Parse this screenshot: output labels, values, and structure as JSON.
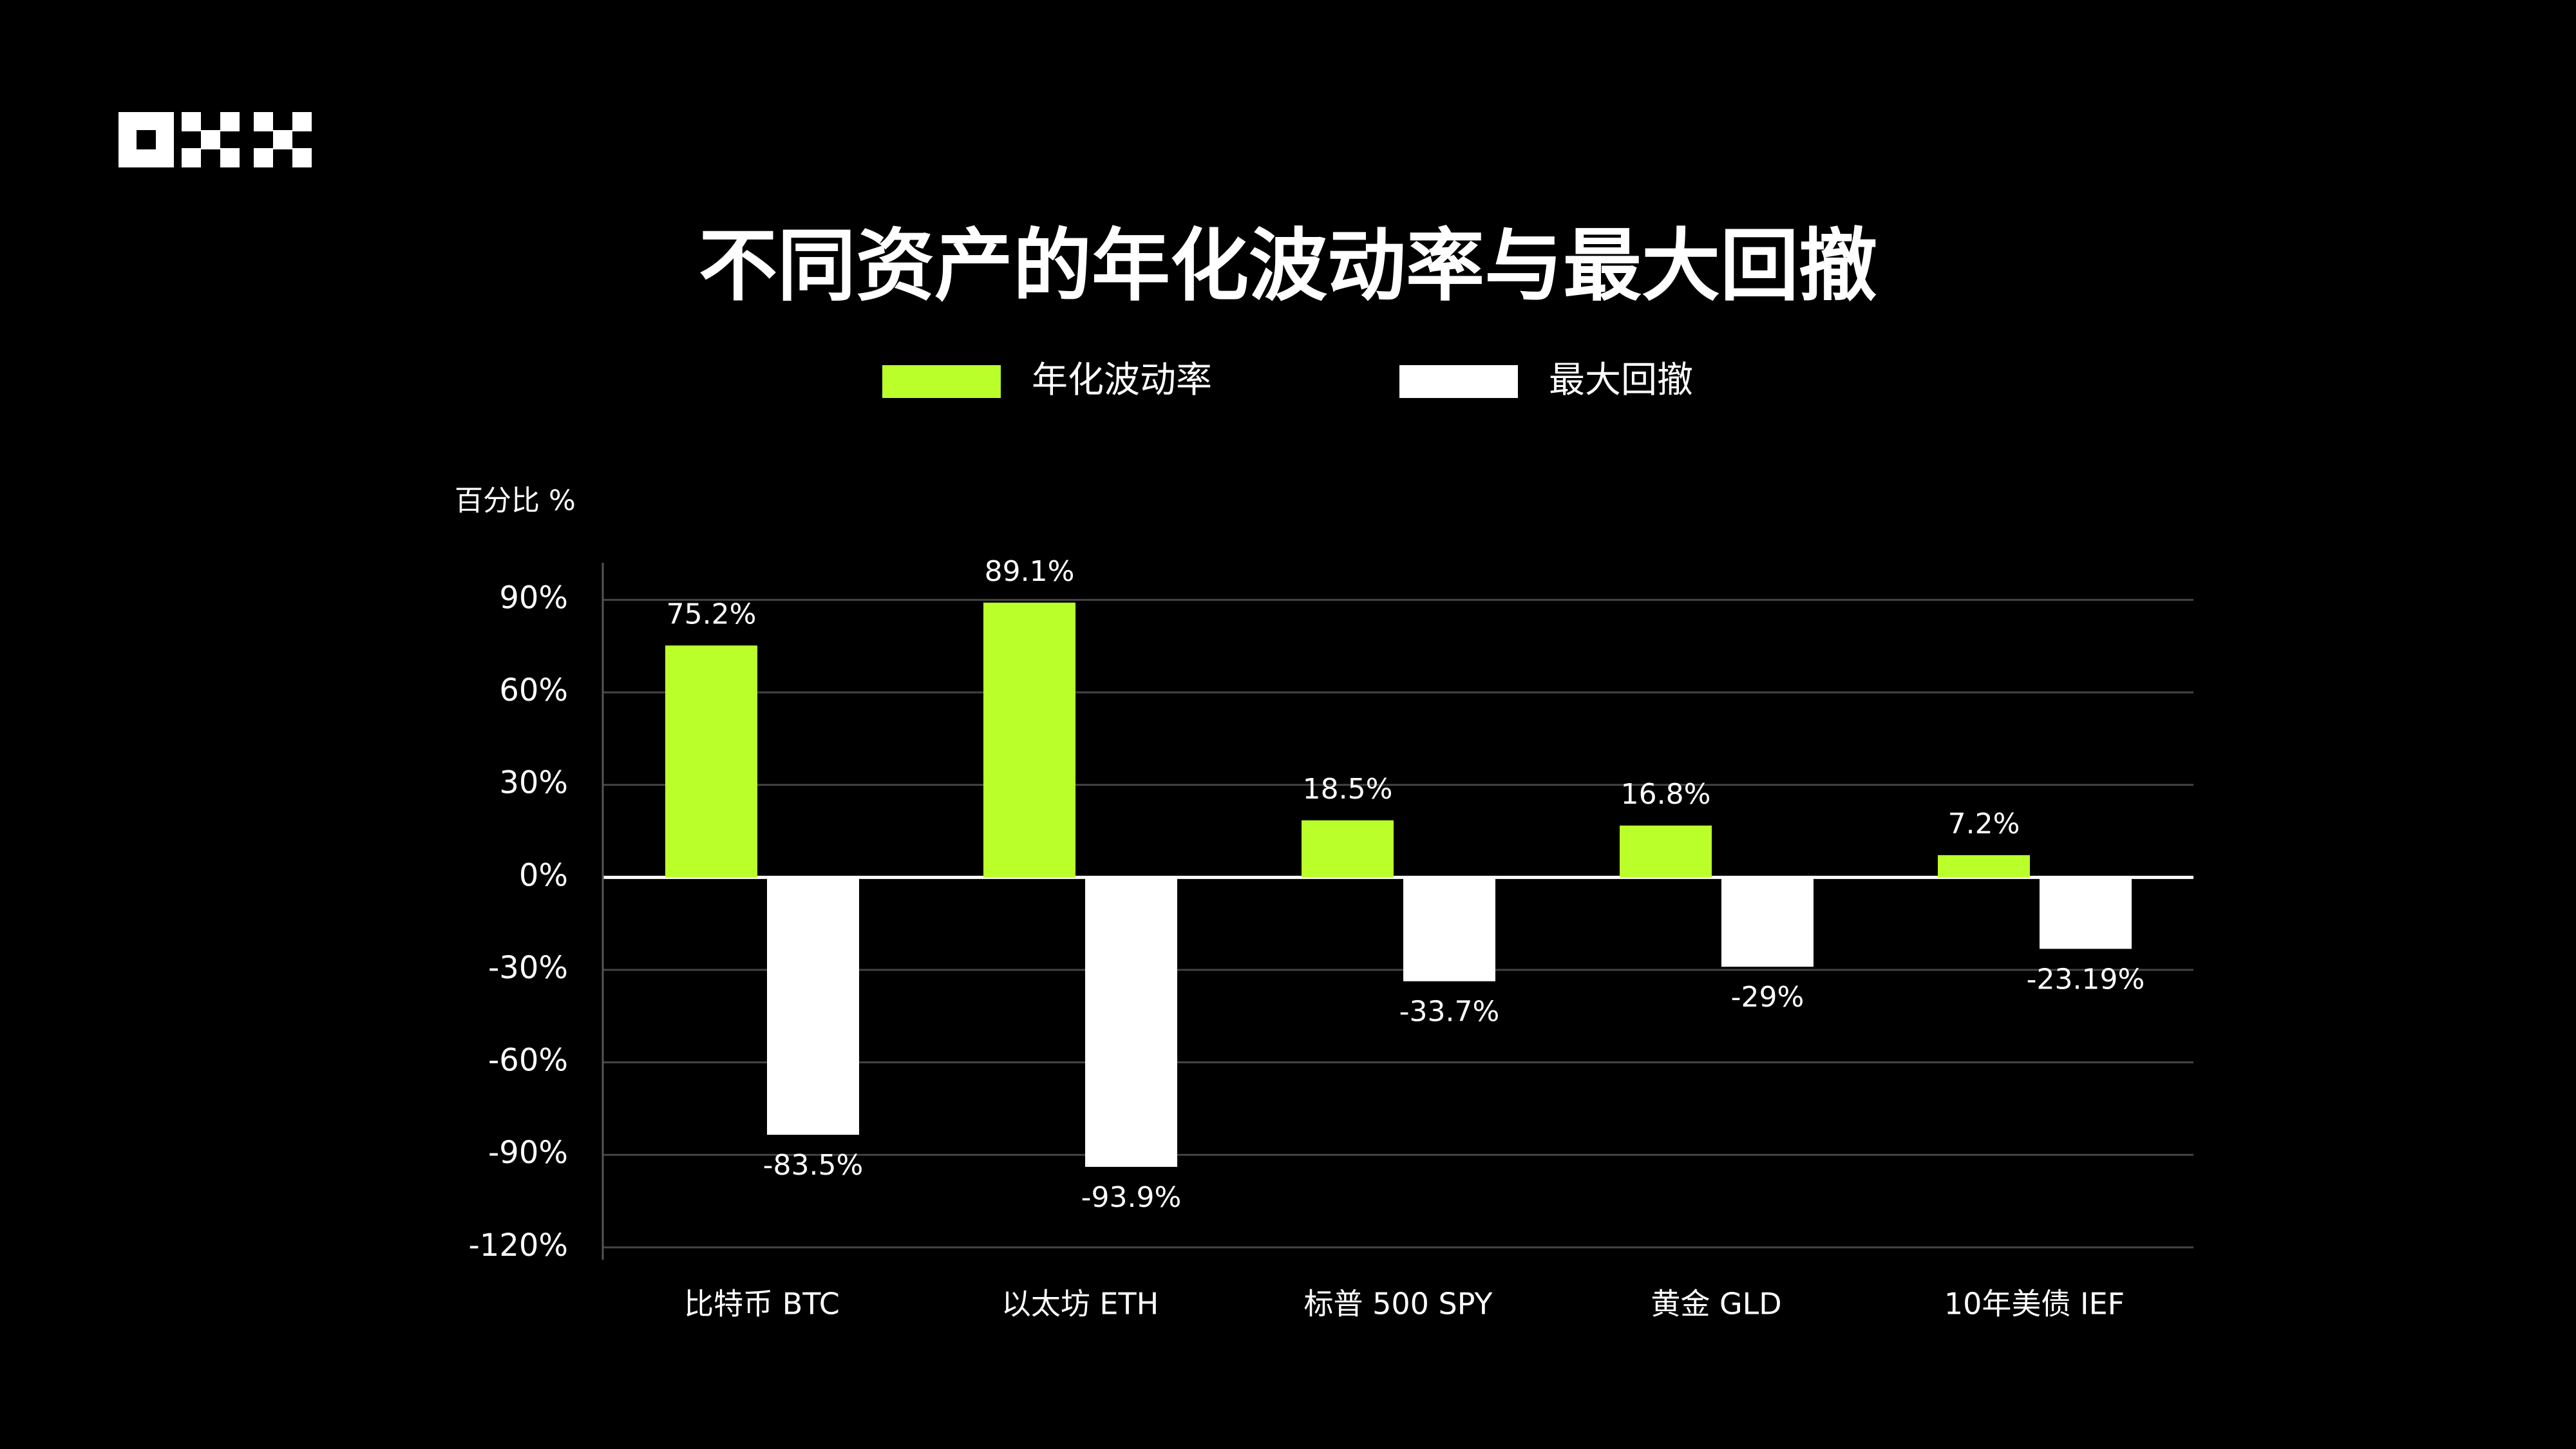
{
  "chart_data": {
    "type": "bar",
    "title": "不同资产的年化波动率与最大回撤",
    "y_label": "百分比 %",
    "categories": [
      "比特币 BTC",
      "以太坊 ETH",
      "标普 500 SPY",
      "黄金 GLD",
      "10年美债 IEF"
    ],
    "series": [
      {
        "name": "年化波动率",
        "color": "#baff29",
        "values": [
          75.2,
          89.1,
          18.5,
          16.8,
          7.2
        ],
        "value_labels": [
          "75.2%",
          "89.1%",
          "18.5%",
          "16.8%",
          "7.2%"
        ]
      },
      {
        "name": "最大回撤",
        "color": "#ffffff",
        "values": [
          -83.5,
          -93.9,
          -33.7,
          -29,
          -23.19
        ],
        "value_labels": [
          "-83.5%",
          "-93.9%",
          "-33.7%",
          "-29%",
          "-23.19%"
        ]
      }
    ],
    "ylim": [
      -124,
      102
    ],
    "yticks": [
      {
        "value": -120,
        "label": "-120%"
      },
      {
        "value": -90,
        "label": "-90%"
      },
      {
        "value": -60,
        "label": "-60%"
      },
      {
        "value": -30,
        "label": "-30%"
      },
      {
        "value": 0,
        "label": "0%"
      },
      {
        "value": 30,
        "label": "30%"
      },
      {
        "value": 60,
        "label": "60%"
      },
      {
        "value": 90,
        "label": "90%"
      }
    ],
    "grid": true
  }
}
